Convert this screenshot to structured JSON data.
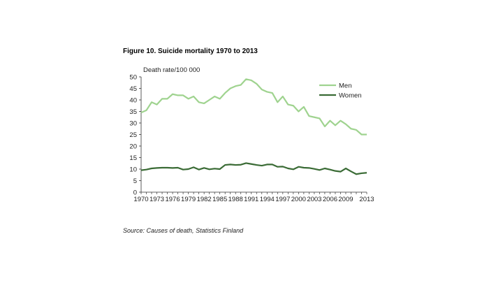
{
  "figure": {
    "title": "Figure 10. Suicide mortality 1970 to 2013",
    "source": "Source: Causes of death, Statistics Finland"
  },
  "chart_data": {
    "type": "line",
    "title": "Figure 10. Suicide mortality 1970 to 2013",
    "xlabel": "",
    "ylabel": "Death rate/100 000",
    "ylim": [
      0,
      50
    ],
    "xlim": [
      1970,
      2013
    ],
    "yticks": [
      0,
      5,
      10,
      15,
      20,
      25,
      30,
      35,
      40,
      45,
      50
    ],
    "xtick_labels": [
      "1970",
      "1973",
      "1976",
      "1979",
      "1982",
      "1985",
      "1988",
      "1991",
      "1994",
      "1997",
      "2000",
      "2003",
      "2006",
      "2009",
      "2013"
    ],
    "xtick_values": [
      1970,
      1973,
      1976,
      1979,
      1982,
      1985,
      1988,
      1991,
      1994,
      1997,
      2000,
      2003,
      2006,
      2009,
      2013
    ],
    "x": [
      1970,
      1971,
      1972,
      1973,
      1974,
      1975,
      1976,
      1977,
      1978,
      1979,
      1980,
      1981,
      1982,
      1983,
      1984,
      1985,
      1986,
      1987,
      1988,
      1989,
      1990,
      1991,
      1992,
      1993,
      1994,
      1995,
      1996,
      1997,
      1998,
      1999,
      2000,
      2001,
      2002,
      2003,
      2004,
      2005,
      2006,
      2007,
      2008,
      2009,
      2010,
      2011,
      2012,
      2013
    ],
    "grid": false,
    "legend": "top-right",
    "series": [
      {
        "name": "Men",
        "color": "#9fd38f",
        "values": [
          34.5,
          35.5,
          39,
          38,
          40.5,
          40.5,
          42.5,
          42,
          42,
          40.5,
          41.5,
          39,
          38.5,
          40,
          41.5,
          40.5,
          43,
          45,
          46,
          46.5,
          49,
          48.5,
          47,
          44.5,
          43.5,
          43,
          39,
          41.5,
          38,
          37.5,
          35,
          37,
          33,
          32.5,
          32,
          28.5,
          31,
          29,
          31,
          29.5,
          27.5,
          27,
          25,
          25
        ]
      },
      {
        "name": "Women",
        "color": "#3a6b35",
        "values": [
          9.5,
          9.8,
          10.3,
          10.5,
          10.6,
          10.6,
          10.5,
          10.6,
          9.8,
          10,
          10.8,
          9.8,
          10.5,
          9.9,
          10.2,
          10,
          11.8,
          12,
          11.8,
          11.9,
          12.6,
          12.2,
          11.8,
          11.5,
          12,
          12,
          11,
          11.1,
          10.3,
          9.9,
          11,
          10.6,
          10.5,
          10.1,
          9.6,
          10.3,
          9.8,
          9.2,
          8.9,
          10.3,
          9,
          7.8,
          8.2,
          8.4
        ]
      }
    ]
  }
}
